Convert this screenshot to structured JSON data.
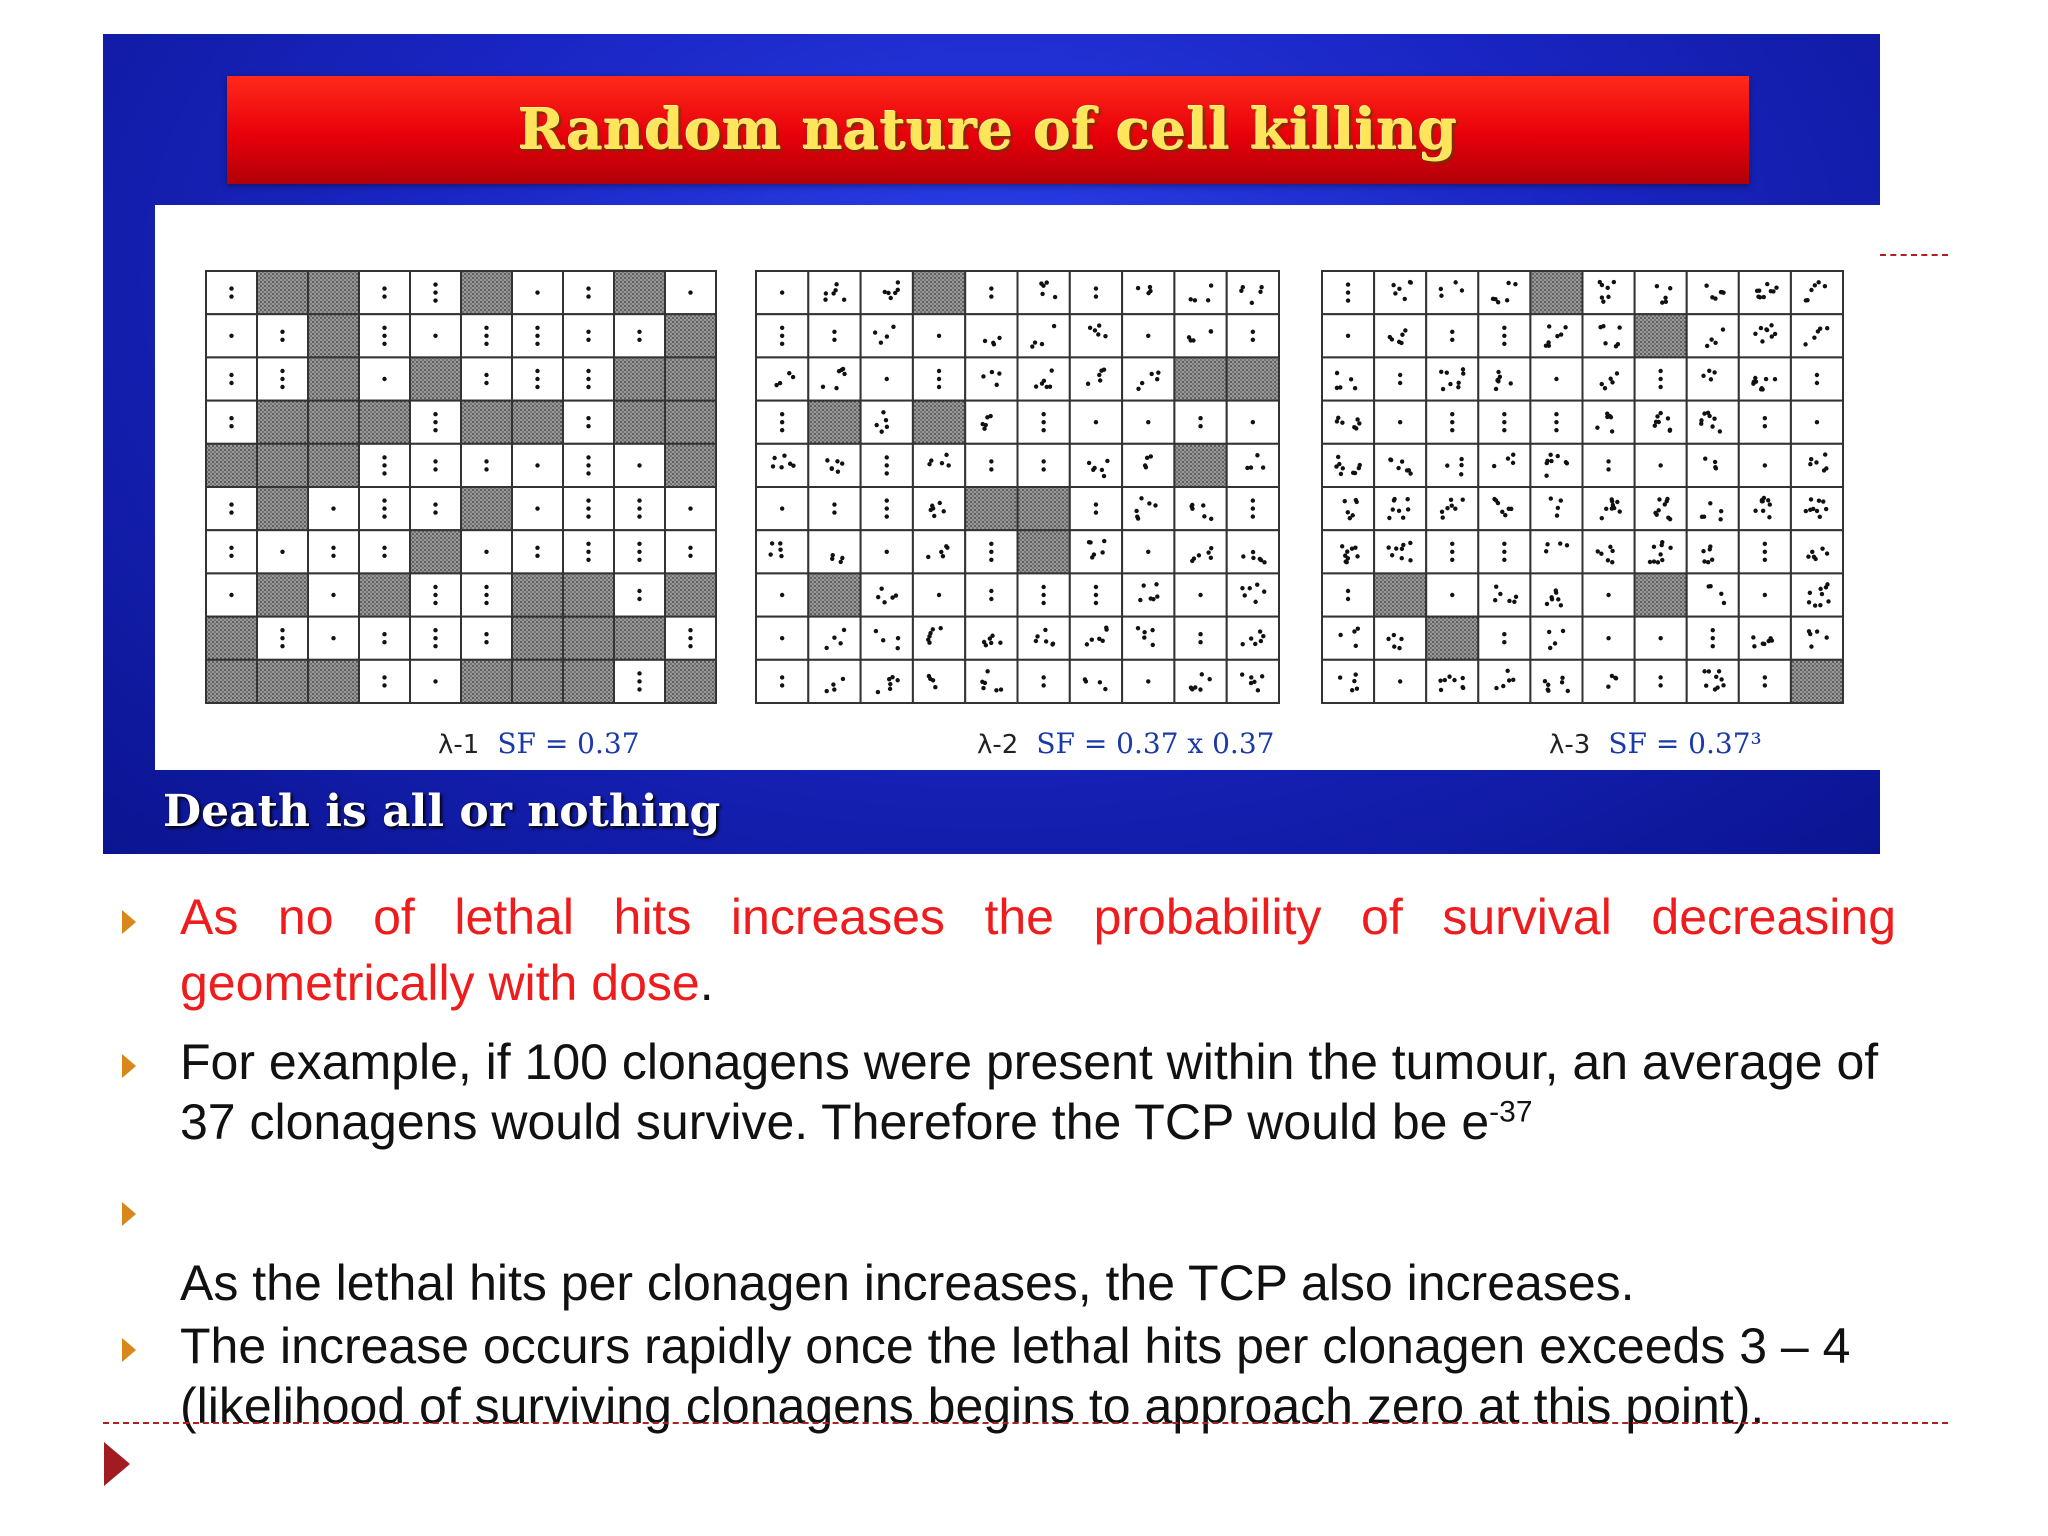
{
  "figure": {
    "title": "Random nature of cell killing",
    "panels": [
      {
        "lambda": "λ-1",
        "sf": "SF = 0.37"
      },
      {
        "lambda": "λ-2",
        "sf": "SF = 0.37 x 0.37"
      },
      {
        "lambda": "λ-3",
        "sf": "SF = 0.37³"
      }
    ],
    "footer": "Death is all or nothing",
    "colors": {
      "blue": "#1a26c4",
      "red": "#e8000a",
      "title_text": "#ffe55a",
      "sf_text": "#1a3aa8"
    }
  },
  "bullets": [
    {
      "text": "As no of lethal hits increases the probability of survival decreasing geometrically with dose",
      "trailing": ".",
      "color": "#ee1c1c"
    },
    {
      "text": "For example, if 100 clonagens were present within the tumour, an average of 37 clonagens would survive. Therefore the TCP would be e",
      "sup": "-37"
    },
    {
      "text": ""
    },
    {
      "text": "As the lethal hits per clonagen increases, the TCP also increases."
    },
    {
      "text": "The increase occurs rapidly once the lethal hits per clonagen exceeds 3 – 4 (likelihood of surviving clonagens begins to approach zero at this point)."
    }
  ]
}
